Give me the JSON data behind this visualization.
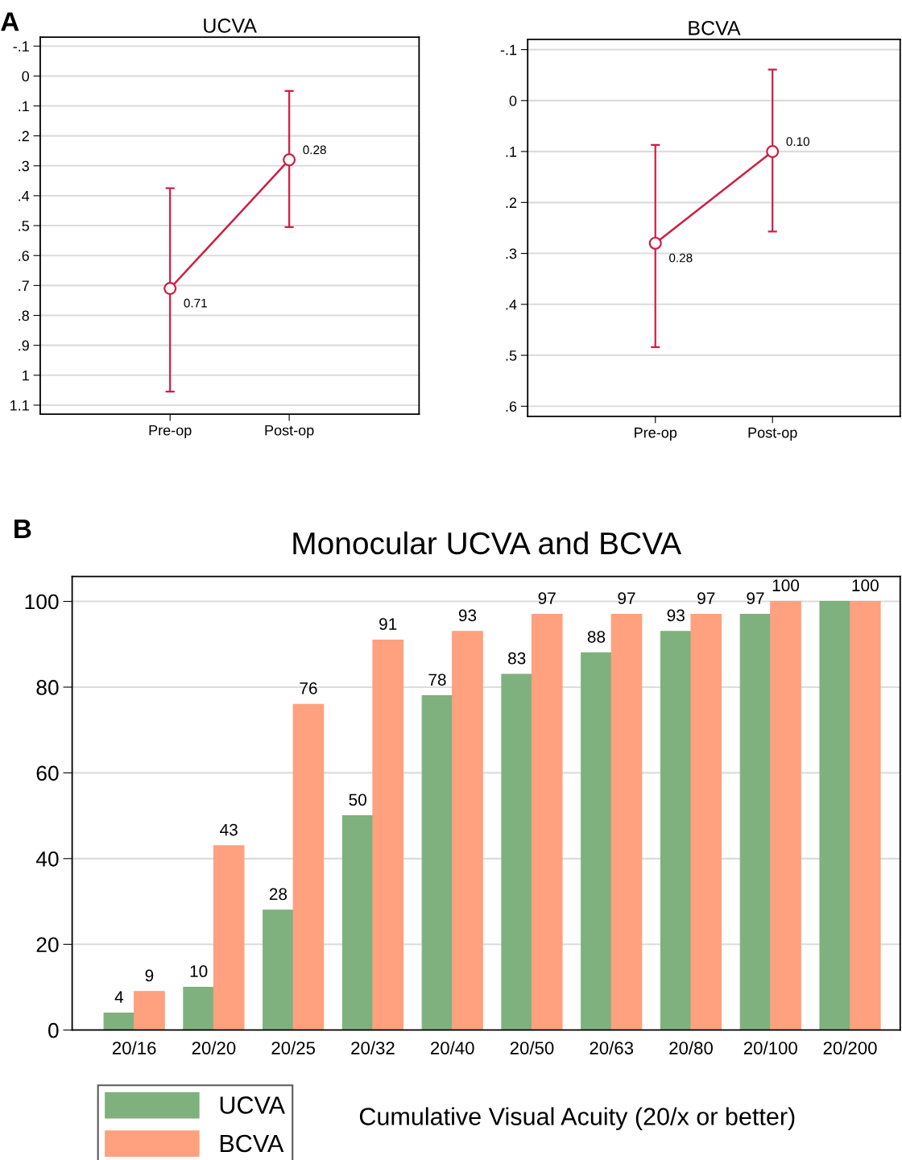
{
  "chart_data": [
    {
      "type": "line",
      "title": "UCVA",
      "annotations": [
        "A"
      ],
      "categories": [
        "Pre-op",
        "Post-op"
      ],
      "series": [
        {
          "color": "#cc1f44",
          "values": [
            0.71,
            0.28
          ],
          "value_labels": [
            "0.71",
            "0.28"
          ],
          "errors": [
            [
              0.375,
              1.055
            ],
            [
              0.05,
              0.505
            ]
          ]
        }
      ],
      "marker": "circle",
      "line_style": "solid",
      "grid": "y",
      "ylim": [
        1.13,
        -0.13
      ],
      "yticks": [
        {
          "value": -0.1,
          "label": "-.1"
        },
        0,
        {
          "value": 0.1,
          "label": ".1"
        },
        {
          "value": 0.2,
          "label": ".2"
        },
        {
          "value": 0.3,
          "label": ".3"
        },
        {
          "value": 0.4,
          "label": ".4"
        },
        {
          "value": 0.5,
          "label": ".5"
        },
        {
          "value": 0.6,
          "label": ".6"
        },
        {
          "value": 0.7,
          "label": ".7"
        },
        {
          "value": 0.8,
          "label": ".8"
        },
        {
          "value": 0.9,
          "label": ".9"
        },
        1,
        1.1
      ]
    },
    {
      "type": "line",
      "title": "BCVA",
      "categories": [
        "Pre-op",
        "Post-op"
      ],
      "series": [
        {
          "color": "#cc1f44",
          "values": [
            0.28,
            0.1
          ],
          "value_labels": [
            "0.28",
            "0.10"
          ],
          "errors": [
            [
              0.087,
              0.484
            ],
            [
              -0.061,
              0.257
            ]
          ]
        }
      ],
      "marker": "circle",
      "line_style": "solid",
      "grid": "y",
      "ylim": [
        0.62,
        -0.12
      ],
      "yticks": [
        {
          "value": -0.1,
          "label": "-.1"
        },
        0,
        {
          "value": 0.1,
          "label": ".1"
        },
        {
          "value": 0.2,
          "label": ".2"
        },
        {
          "value": 0.3,
          "label": ".3"
        },
        {
          "value": 0.4,
          "label": ".4"
        },
        {
          "value": 0.5,
          "label": ".5"
        },
        {
          "value": 0.6,
          "label": ".6"
        }
      ]
    },
    {
      "type": "bar",
      "title": "Monocular UCVA and BCVA",
      "annotations": [
        "B"
      ],
      "xlabel": "Cumulative Visual Acuity (20/x or better)",
      "categories": [
        "20/16",
        "20/20",
        "20/25",
        "20/32",
        "20/40",
        "20/50",
        "20/63",
        "20/80",
        "20/100",
        "20/200"
      ],
      "series": [
        {
          "name": "UCVA",
          "color": "#7fb17f",
          "values": [
            4,
            10,
            28,
            50,
            78,
            83,
            88,
            93,
            97,
            100
          ],
          "value_labels": [
            "4",
            "10",
            "28",
            "50",
            "78",
            "83",
            "88",
            "93",
            "97",
            null
          ]
        },
        {
          "name": "BCVA",
          "color": "#ffa07f",
          "values": [
            9,
            43,
            76,
            91,
            93,
            97,
            97,
            97,
            100,
            100
          ],
          "value_labels": [
            "9",
            "43",
            "76",
            "91",
            "93",
            "97",
            "97",
            "97",
            "100",
            "100"
          ]
        }
      ],
      "grid": "y",
      "legend": "bottom left",
      "ylim": [
        0,
        105.8
      ],
      "yticks": [
        0,
        20,
        40,
        60,
        80,
        100
      ]
    }
  ]
}
